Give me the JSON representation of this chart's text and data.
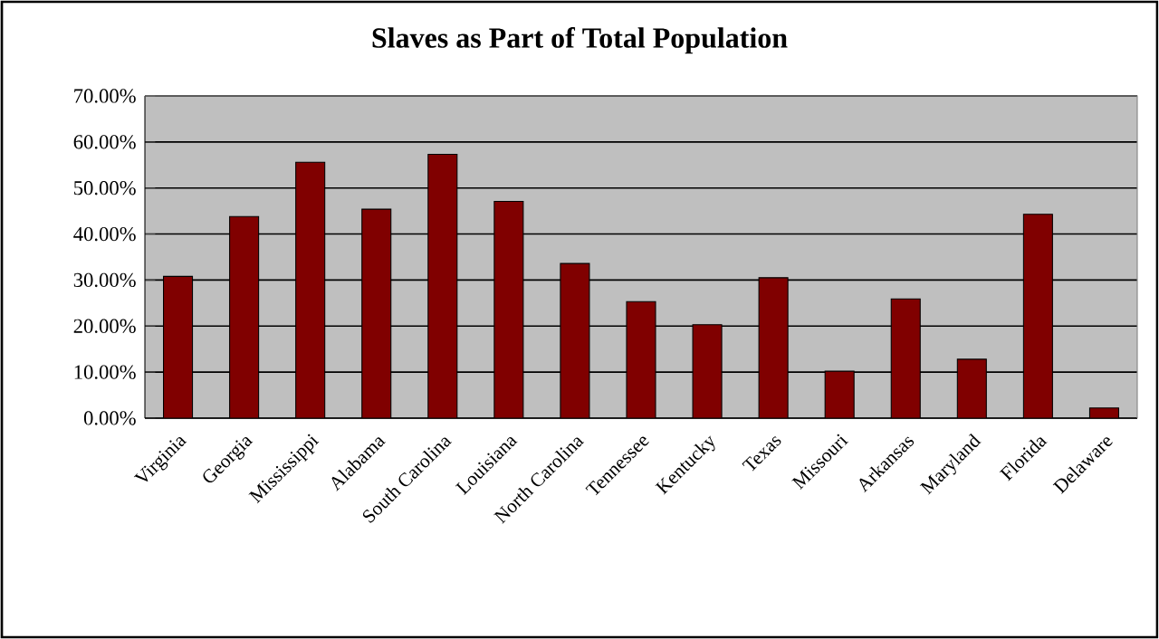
{
  "chart_data": {
    "type": "bar",
    "title": "Slaves as Part of Total Population",
    "categories": [
      "Virginia",
      "Georgia",
      "Mississippi",
      "Alabama",
      "South Carolina",
      "Louisiana",
      "North Carolina",
      "Tennessee",
      "Kentucky",
      "Texas",
      "Missouri",
      "Arkansas",
      "Maryland",
      "Florida",
      "Delaware"
    ],
    "values": [
      30.8,
      43.8,
      55.6,
      45.4,
      57.3,
      47.1,
      33.6,
      25.3,
      20.3,
      30.5,
      10.2,
      25.9,
      12.8,
      44.3,
      2.2
    ],
    "color": "#800000",
    "ylim": [
      0,
      70
    ],
    "yticks": [
      {
        "value": 0,
        "label": "0.00%"
      },
      {
        "value": 10,
        "label": "10.00%"
      },
      {
        "value": 20,
        "label": "20.00%"
      },
      {
        "value": 30,
        "label": "30.00%"
      },
      {
        "value": 40,
        "label": "40.00%"
      },
      {
        "value": 50,
        "label": "50.00%"
      },
      {
        "value": 60,
        "label": "60.00%"
      },
      {
        "value": 70,
        "label": "70.00%"
      }
    ],
    "grid": "y"
  }
}
